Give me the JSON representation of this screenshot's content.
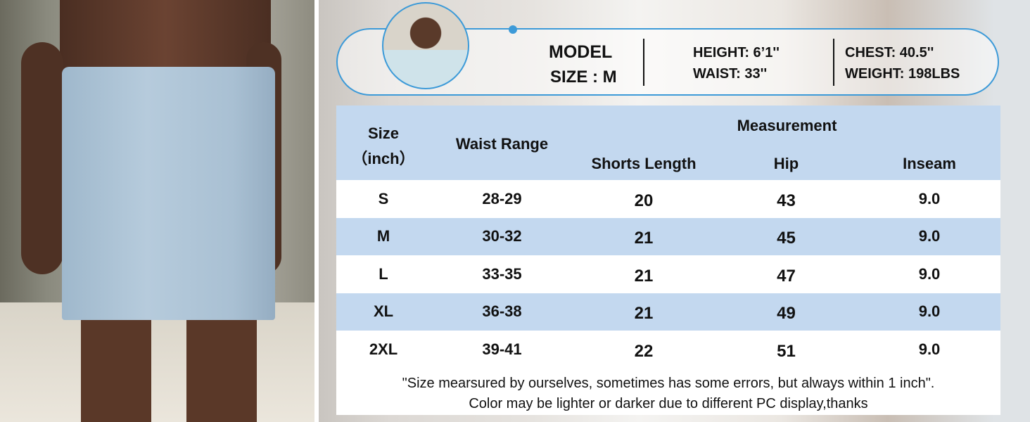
{
  "model": {
    "title": "MODEL",
    "size": "SIZE : M",
    "height": "HEIGHT: 6’1''",
    "waist": "WAIST: 33''",
    "chest": "CHEST: 40.5''",
    "weight": "WEIGHT: 198LBS"
  },
  "table": {
    "headers": {
      "size": "Size",
      "size_unit": "（inch）",
      "waist_range": "Waist Range",
      "measurement": "Measurement",
      "shorts_length": "Shorts Length",
      "hip": "Hip",
      "inseam": "Inseam"
    },
    "rows": [
      {
        "size": "S",
        "waist": "28-29",
        "length": "20",
        "hip": "43",
        "inseam": "9.0"
      },
      {
        "size": "M",
        "waist": "30-32",
        "length": "21",
        "hip": "45",
        "inseam": "9.0"
      },
      {
        "size": "L",
        "waist": "33-35",
        "length": "21",
        "hip": "47",
        "inseam": "9.0"
      },
      {
        "size": "XL",
        "waist": "36-38",
        "length": "21",
        "hip": "49",
        "inseam": "9.0"
      },
      {
        "size": "2XL",
        "waist": "39-41",
        "length": "22",
        "hip": "51",
        "inseam": "9.0"
      }
    ],
    "note_line1": "\"Size mearsured by ourselves, sometimes has some errors, but always within 1 inch\".",
    "note_line2": "Color may be lighter or darker due to different PC display,thanks"
  },
  "colors": {
    "accent": "#3c9ad8",
    "header_bg": "#c3d8ef",
    "shorts": "#b0c6d8"
  }
}
